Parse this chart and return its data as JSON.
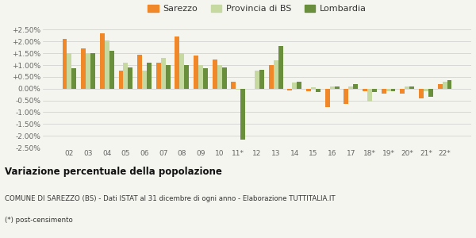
{
  "years": [
    "02",
    "03",
    "04",
    "05",
    "06",
    "07",
    "08",
    "09",
    "10",
    "11*",
    "12",
    "13",
    "14",
    "15",
    "16",
    "17",
    "18*",
    "19*",
    "20*",
    "21*",
    "22*"
  ],
  "sarezzo": [
    2.1,
    1.7,
    2.35,
    0.75,
    1.45,
    1.1,
    2.2,
    1.4,
    1.25,
    0.3,
    null,
    1.0,
    -0.08,
    -0.1,
    -0.8,
    -0.65,
    -0.1,
    -0.2,
    -0.2,
    -0.4,
    0.2
  ],
  "provincia_bs": [
    1.5,
    1.5,
    2.05,
    1.1,
    0.75,
    1.3,
    1.5,
    1.0,
    1.0,
    -0.05,
    0.75,
    1.2,
    0.25,
    0.05,
    0.1,
    0.1,
    -0.55,
    -0.1,
    0.1,
    -0.1,
    0.3
  ],
  "lombardia": [
    0.85,
    1.5,
    1.6,
    0.9,
    1.1,
    1.0,
    1.0,
    0.85,
    0.9,
    -2.15,
    0.8,
    1.8,
    0.3,
    -0.15,
    0.1,
    0.2,
    -0.15,
    -0.1,
    0.1,
    -0.35,
    0.35
  ],
  "color_sarezzo": "#f0882a",
  "color_provincia": "#c5d9a0",
  "color_lombardia": "#6a8f3c",
  "title": "Variazione percentuale della popolazione",
  "subtitle": "COMUNE DI SAREZZO (BS) - Dati ISTAT al 31 dicembre di ogni anno - Elaborazione TUTTITALIA.IT",
  "footnote": "(*) post-censimento",
  "ylim": [
    -2.5,
    2.75
  ],
  "yticks": [
    -2.5,
    -2.0,
    -1.5,
    -1.0,
    -0.5,
    0.0,
    0.5,
    1.0,
    1.5,
    2.0,
    2.5
  ],
  "legend_labels": [
    "Sarezzo",
    "Provincia di BS",
    "Lombardia"
  ],
  "bg_color": "#f5f5f0"
}
